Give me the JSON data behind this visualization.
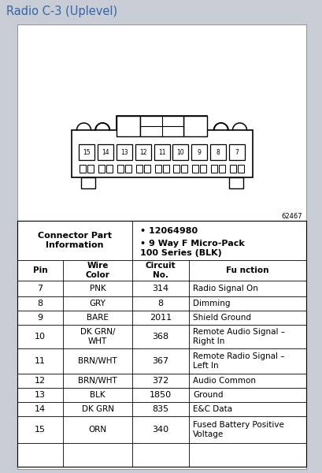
{
  "title": "Radio C-3 (Uplevel)",
  "title_color": "#3366aa",
  "title_bg": "#c8ccd4",
  "bg_color": "#c8ccd4",
  "content_bg": "#ffffff",
  "diagram_code": "62467",
  "connector_info_label": "Connector Part\nInformation",
  "connector_info_bullets": [
    "12064980",
    "9 Way F Micro-Pack\n100 Series (BLK)"
  ],
  "table_headers": [
    "Pin",
    "Wire\nColor",
    "Circuit\nNo.",
    "Fu nction"
  ],
  "table_rows": [
    [
      "7",
      "PNK",
      "314",
      "Radio Signal On"
    ],
    [
      "8",
      "GRY",
      "8",
      "Dimming"
    ],
    [
      "9",
      "BARE",
      "2011",
      "Shield Ground"
    ],
    [
      "10",
      "DK GRN/\nWHT",
      "368",
      "Remote Audio Signal –\nRight In"
    ],
    [
      "11",
      "BRN/WHT",
      "367",
      "Remote Radio Signal –\nLeft In"
    ],
    [
      "12",
      "BRN/WHT",
      "372",
      "Audio Common"
    ],
    [
      "13",
      "BLK",
      "1850",
      "Ground"
    ],
    [
      "14",
      "DK GRN",
      "835",
      "E&C Data"
    ],
    [
      "15",
      "ORN",
      "340",
      "Fused Battery Positive\nVoltage"
    ]
  ],
  "pin_numbers": [
    "15",
    "14",
    "13",
    "12",
    "11",
    "10",
    "9",
    "8",
    "7"
  ],
  "fig_width": 4.09,
  "fig_height": 6.0
}
